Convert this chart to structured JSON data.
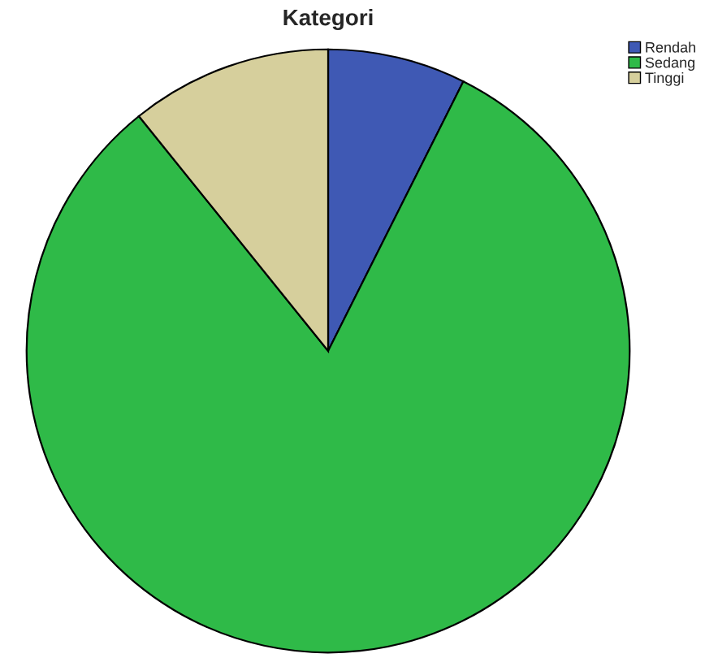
{
  "chart_data": {
    "type": "pie",
    "title": "Kategori",
    "categories": [
      "Rendah",
      "Sedang",
      "Tinggi"
    ],
    "values": [
      7.4,
      81.8,
      10.8
    ],
    "colors": [
      "#3f59b4",
      "#2fba48",
      "#d6cf9c"
    ],
    "legend": "top right"
  }
}
